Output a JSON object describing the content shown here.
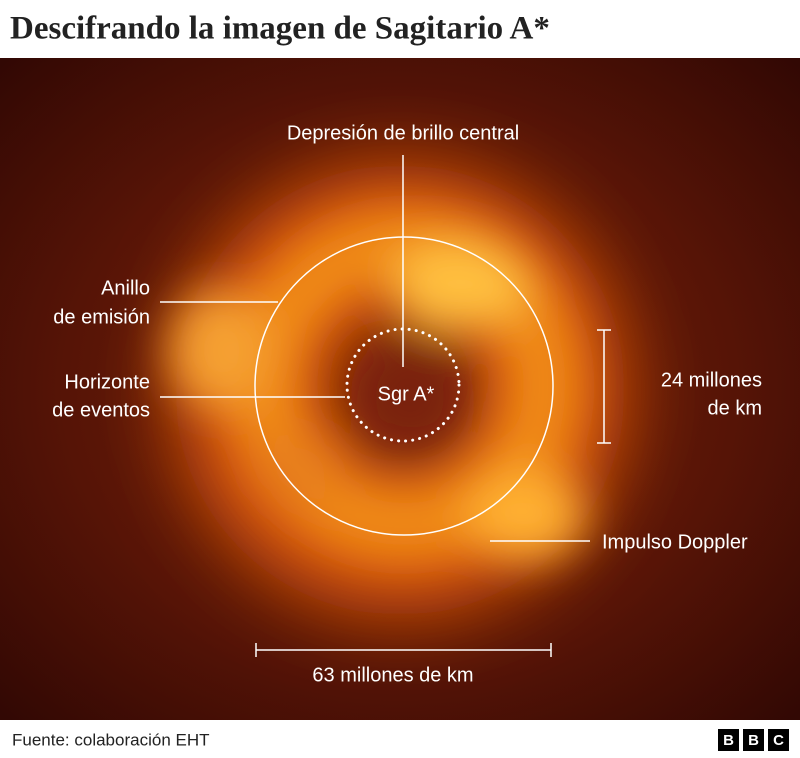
{
  "header": {
    "title": "Descifrando la imagen de Sagitario A*"
  },
  "labels": {
    "central": "Depresión de brillo central",
    "ring": [
      "Anillo",
      "de emisión"
    ],
    "horizon": [
      "Horizonte",
      "de eventos"
    ],
    "center": "Sgr A*",
    "height": [
      "24 millones",
      "de km"
    ],
    "doppler": "Impulso Doppler",
    "width": "63 millones de km"
  },
  "footer": {
    "source": "Fuente: colaboración EHT",
    "logo": [
      "B",
      "B",
      "C"
    ]
  }
}
